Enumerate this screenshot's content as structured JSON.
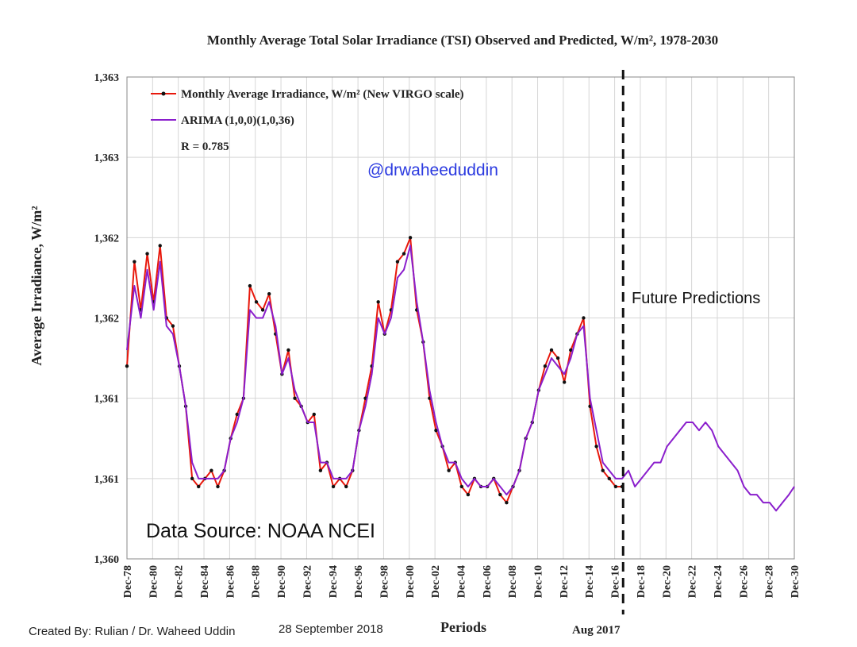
{
  "chart_data": {
    "type": "line",
    "title": "Monthly Average Total Solar Irradiance (TSI) Observed and Predicted, W/m², 1978-2030",
    "xlabel": "Periods",
    "ylabel": "Average Irradiance, W/m²",
    "y_tick_labels": [
      "1,363",
      "1,363",
      "1,362",
      "1,362",
      "1,361",
      "1,361",
      "1,360"
    ],
    "ylim": [
      1360.0,
      1363.0
    ],
    "x_tick_labels": [
      "Dec-78",
      "Dec-80",
      "Dec-82",
      "Dec-84",
      "Dec-86",
      "Dec-88",
      "Dec-90",
      "Dec-92",
      "Dec-94",
      "Dec-96",
      "Dec-98",
      "Dec-00",
      "Dec-02",
      "Dec-04",
      "Dec-06",
      "Dec-08",
      "Dec-10",
      "Dec-12",
      "Dec-14",
      "Dec-16",
      "Dec-18",
      "Dec-20",
      "Dec-22",
      "Dec-24",
      "Dec-26",
      "Dec-28",
      "Dec-30"
    ],
    "xlim": [
      1978.92,
      2030.92
    ],
    "grid": true,
    "legend_position": "top-left",
    "vertical_marker": {
      "x": 2017.58,
      "label": "Aug 2017"
    },
    "series": [
      {
        "name": "Monthly Average Irradiance, W/m² (New VIRGO scale)",
        "color": "#e8180c",
        "marker": "dot",
        "x": [
          1978.92,
          1979.5,
          1980.0,
          1980.5,
          1981.0,
          1981.5,
          1982.0,
          1982.5,
          1983.0,
          1983.5,
          1984.0,
          1984.5,
          1985.0,
          1985.5,
          1986.0,
          1986.5,
          1987.0,
          1987.5,
          1988.0,
          1988.5,
          1989.0,
          1989.5,
          1990.0,
          1990.5,
          1991.0,
          1991.5,
          1992.0,
          1992.5,
          1993.0,
          1993.5,
          1994.0,
          1994.5,
          1995.0,
          1995.5,
          1996.0,
          1996.5,
          1997.0,
          1997.5,
          1998.0,
          1998.5,
          1999.0,
          1999.5,
          2000.0,
          2000.5,
          2001.0,
          2001.5,
          2002.0,
          2002.5,
          2003.0,
          2003.5,
          2004.0,
          2004.5,
          2005.0,
          2005.5,
          2006.0,
          2006.5,
          2007.0,
          2007.5,
          2008.0,
          2008.5,
          2009.0,
          2009.5,
          2010.0,
          2010.5,
          2011.0,
          2011.5,
          2012.0,
          2012.5,
          2013.0,
          2013.5,
          2014.0,
          2014.5,
          2015.0,
          2015.5,
          2016.0,
          2016.5,
          2017.0,
          2017.5
        ],
        "values": [
          1361.2,
          1361.85,
          1361.55,
          1361.9,
          1361.6,
          1361.95,
          1361.5,
          1361.45,
          1361.2,
          1360.95,
          1360.5,
          1360.45,
          1360.5,
          1360.55,
          1360.45,
          1360.55,
          1360.75,
          1360.9,
          1361.0,
          1361.7,
          1361.6,
          1361.55,
          1361.65,
          1361.4,
          1361.15,
          1361.3,
          1361.0,
          1360.95,
          1360.85,
          1360.9,
          1360.55,
          1360.6,
          1360.45,
          1360.5,
          1360.45,
          1360.55,
          1360.8,
          1361.0,
          1361.2,
          1361.6,
          1361.4,
          1361.55,
          1361.85,
          1361.9,
          1362.0,
          1361.55,
          1361.35,
          1361.0,
          1360.8,
          1360.7,
          1360.55,
          1360.6,
          1360.45,
          1360.4,
          1360.5,
          1360.45,
          1360.45,
          1360.5,
          1360.4,
          1360.35,
          1360.45,
          1360.55,
          1360.75,
          1360.85,
          1361.05,
          1361.2,
          1361.3,
          1361.25,
          1361.1,
          1361.3,
          1361.4,
          1361.5,
          1360.95,
          1360.7,
          1360.55,
          1360.5,
          1360.45,
          1360.45
        ]
      },
      {
        "name": "ARIMA (1,0,0)(1,0,36)",
        "color": "#8a1ecc",
        "marker": "none",
        "x": [
          1978.92,
          1979.5,
          1980.0,
          1980.5,
          1981.0,
          1981.5,
          1982.0,
          1982.5,
          1983.0,
          1983.5,
          1984.0,
          1984.5,
          1985.0,
          1985.5,
          1986.0,
          1986.5,
          1987.0,
          1987.5,
          1988.0,
          1988.5,
          1989.0,
          1989.5,
          1990.0,
          1990.5,
          1991.0,
          1991.5,
          1992.0,
          1992.5,
          1993.0,
          1993.5,
          1994.0,
          1994.5,
          1995.0,
          1995.5,
          1996.0,
          1996.5,
          1997.0,
          1997.5,
          1998.0,
          1998.5,
          1999.0,
          1999.5,
          2000.0,
          2000.5,
          2001.0,
          2001.5,
          2002.0,
          2002.5,
          2003.0,
          2003.5,
          2004.0,
          2004.5,
          2005.0,
          2005.5,
          2006.0,
          2006.5,
          2007.0,
          2007.5,
          2008.0,
          2008.5,
          2009.0,
          2009.5,
          2010.0,
          2010.5,
          2011.0,
          2011.5,
          2012.0,
          2012.5,
          2013.0,
          2013.5,
          2014.0,
          2014.5,
          2015.0,
          2015.5,
          2016.0,
          2016.5,
          2017.0,
          2017.5,
          2018.0,
          2018.5,
          2019.0,
          2019.5,
          2020.0,
          2020.5,
          2021.0,
          2021.5,
          2022.0,
          2022.5,
          2023.0,
          2023.5,
          2024.0,
          2024.5,
          2025.0,
          2025.5,
          2026.0,
          2026.5,
          2027.0,
          2027.5,
          2028.0,
          2028.5,
          2029.0,
          2029.5,
          2030.0,
          2030.5,
          2030.92
        ],
        "values": [
          1361.3,
          1361.7,
          1361.5,
          1361.8,
          1361.55,
          1361.85,
          1361.45,
          1361.4,
          1361.2,
          1360.95,
          1360.6,
          1360.5,
          1360.5,
          1360.5,
          1360.5,
          1360.55,
          1360.75,
          1360.85,
          1361.0,
          1361.55,
          1361.5,
          1361.5,
          1361.6,
          1361.45,
          1361.15,
          1361.25,
          1361.05,
          1360.95,
          1360.85,
          1360.85,
          1360.6,
          1360.6,
          1360.5,
          1360.5,
          1360.5,
          1360.55,
          1360.8,
          1360.95,
          1361.15,
          1361.5,
          1361.4,
          1361.5,
          1361.75,
          1361.8,
          1361.95,
          1361.6,
          1361.35,
          1361.05,
          1360.85,
          1360.7,
          1360.6,
          1360.6,
          1360.5,
          1360.45,
          1360.5,
          1360.45,
          1360.45,
          1360.5,
          1360.45,
          1360.4,
          1360.45,
          1360.55,
          1360.75,
          1360.85,
          1361.05,
          1361.15,
          1361.25,
          1361.2,
          1361.15,
          1361.25,
          1361.4,
          1361.45,
          1361.0,
          1360.8,
          1360.6,
          1360.55,
          1360.5,
          1360.5,
          1360.55,
          1360.45,
          1360.5,
          1360.55,
          1360.6,
          1360.6,
          1360.7,
          1360.75,
          1360.8,
          1360.85,
          1360.85,
          1360.8,
          1360.85,
          1360.8,
          1360.7,
          1360.65,
          1360.6,
          1360.55,
          1360.45,
          1360.4,
          1360.4,
          1360.35,
          1360.35,
          1360.3,
          1360.35,
          1360.4,
          1360.45
        ]
      }
    ],
    "annotations": {
      "r_value": "R = 0.785",
      "handle": "@drwaheeduddin",
      "future": "Future Predictions",
      "source": "Data Source: NOAA NCEI"
    }
  },
  "credit": {
    "created_by": "Created By: Rulian / Dr. Waheed Uddin",
    "date": "28 September 2018"
  }
}
